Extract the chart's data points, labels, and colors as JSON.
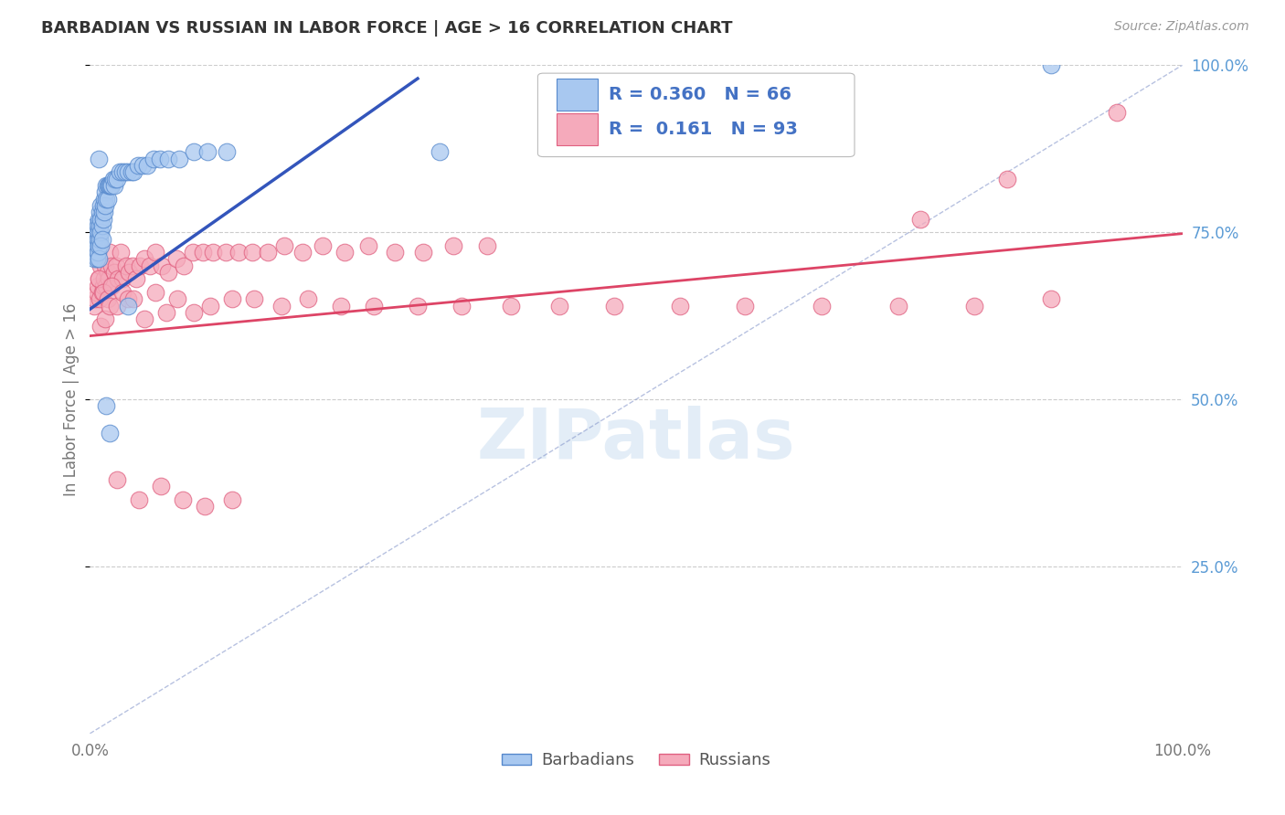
{
  "title": "BARBADIAN VS RUSSIAN IN LABOR FORCE | AGE > 16 CORRELATION CHART",
  "source": "Source: ZipAtlas.com",
  "ylabel": "In Labor Force | Age > 16",
  "xlim": [
    0,
    1
  ],
  "ylim": [
    0,
    1
  ],
  "ytick_labels_right": [
    "25.0%",
    "50.0%",
    "75.0%",
    "100.0%"
  ],
  "ytick_positions_right": [
    0.25,
    0.5,
    0.75,
    1.0
  ],
  "legend_label1": "Barbadians",
  "legend_label2": "Russians",
  "R1": 0.36,
  "N1": 66,
  "R2": 0.161,
  "N2": 93,
  "blue_scatter_color": "#A8C8F0",
  "blue_edge_color": "#5588CC",
  "pink_scatter_color": "#F5AABB",
  "pink_edge_color": "#E06080",
  "blue_line_color": "#3355BB",
  "pink_line_color": "#DD4466",
  "diag_line_color": "#8899CC",
  "grid_color": "#CCCCCC",
  "background_color": "#FFFFFF",
  "title_fontsize": 13,
  "source_fontsize": 10,
  "legend_fontsize": 14,
  "axis_fontsize": 12,
  "blue_line_x": [
    0.0,
    0.3
  ],
  "blue_line_y": [
    0.635,
    0.98
  ],
  "pink_line_x": [
    0.0,
    1.0
  ],
  "pink_line_y": [
    0.595,
    0.748
  ],
  "diag_line_x": [
    0.0,
    1.0
  ],
  "diag_line_y": [
    0.0,
    1.0
  ],
  "barbadians_x": [
    0.003,
    0.004,
    0.004,
    0.005,
    0.005,
    0.005,
    0.006,
    0.006,
    0.006,
    0.007,
    0.007,
    0.007,
    0.008,
    0.008,
    0.008,
    0.008,
    0.009,
    0.009,
    0.009,
    0.01,
    0.01,
    0.01,
    0.01,
    0.011,
    0.011,
    0.011,
    0.012,
    0.012,
    0.013,
    0.013,
    0.014,
    0.014,
    0.015,
    0.015,
    0.016,
    0.016,
    0.017,
    0.018,
    0.019,
    0.02,
    0.021,
    0.022,
    0.023,
    0.025,
    0.027,
    0.03,
    0.032,
    0.035,
    0.038,
    0.04,
    0.044,
    0.048,
    0.052,
    0.058,
    0.064,
    0.072,
    0.082,
    0.095,
    0.108,
    0.125,
    0.015,
    0.018,
    0.008,
    0.32,
    0.88,
    0.035
  ],
  "barbadians_y": [
    0.72,
    0.73,
    0.71,
    0.76,
    0.74,
    0.72,
    0.75,
    0.73,
    0.71,
    0.76,
    0.74,
    0.72,
    0.77,
    0.75,
    0.73,
    0.71,
    0.78,
    0.76,
    0.74,
    0.79,
    0.77,
    0.75,
    0.73,
    0.78,
    0.76,
    0.74,
    0.79,
    0.77,
    0.8,
    0.78,
    0.81,
    0.79,
    0.82,
    0.8,
    0.82,
    0.8,
    0.82,
    0.82,
    0.82,
    0.82,
    0.83,
    0.82,
    0.83,
    0.83,
    0.84,
    0.84,
    0.84,
    0.84,
    0.84,
    0.84,
    0.85,
    0.85,
    0.85,
    0.86,
    0.86,
    0.86,
    0.86,
    0.87,
    0.87,
    0.87,
    0.49,
    0.45,
    0.86,
    0.87,
    1.0,
    0.64
  ],
  "russians_x": [
    0.004,
    0.005,
    0.006,
    0.007,
    0.008,
    0.009,
    0.01,
    0.011,
    0.012,
    0.013,
    0.014,
    0.015,
    0.016,
    0.017,
    0.018,
    0.019,
    0.02,
    0.022,
    0.024,
    0.026,
    0.028,
    0.03,
    0.033,
    0.036,
    0.039,
    0.042,
    0.046,
    0.05,
    0.055,
    0.06,
    0.066,
    0.072,
    0.079,
    0.086,
    0.094,
    0.103,
    0.113,
    0.124,
    0.136,
    0.149,
    0.163,
    0.178,
    0.195,
    0.213,
    0.233,
    0.255,
    0.279,
    0.305,
    0.333,
    0.364,
    0.008,
    0.01,
    0.012,
    0.014,
    0.016,
    0.018,
    0.02,
    0.025,
    0.03,
    0.035,
    0.04,
    0.05,
    0.06,
    0.07,
    0.08,
    0.095,
    0.11,
    0.13,
    0.15,
    0.175,
    0.2,
    0.23,
    0.26,
    0.3,
    0.34,
    0.385,
    0.43,
    0.48,
    0.54,
    0.6,
    0.67,
    0.74,
    0.81,
    0.88,
    0.94,
    0.84,
    0.76,
    0.025,
    0.045,
    0.065,
    0.085,
    0.105,
    0.13
  ],
  "russians_y": [
    0.64,
    0.65,
    0.66,
    0.67,
    0.68,
    0.65,
    0.7,
    0.66,
    0.67,
    0.68,
    0.7,
    0.67,
    0.69,
    0.68,
    0.72,
    0.67,
    0.7,
    0.69,
    0.7,
    0.68,
    0.72,
    0.68,
    0.7,
    0.69,
    0.7,
    0.68,
    0.7,
    0.71,
    0.7,
    0.72,
    0.7,
    0.69,
    0.71,
    0.7,
    0.72,
    0.72,
    0.72,
    0.72,
    0.72,
    0.72,
    0.72,
    0.73,
    0.72,
    0.73,
    0.72,
    0.73,
    0.72,
    0.72,
    0.73,
    0.73,
    0.68,
    0.61,
    0.66,
    0.62,
    0.65,
    0.64,
    0.67,
    0.64,
    0.66,
    0.65,
    0.65,
    0.62,
    0.66,
    0.63,
    0.65,
    0.63,
    0.64,
    0.65,
    0.65,
    0.64,
    0.65,
    0.64,
    0.64,
    0.64,
    0.64,
    0.64,
    0.64,
    0.64,
    0.64,
    0.64,
    0.64,
    0.64,
    0.64,
    0.65,
    0.93,
    0.83,
    0.77,
    0.38,
    0.35,
    0.37,
    0.35,
    0.34,
    0.35
  ]
}
